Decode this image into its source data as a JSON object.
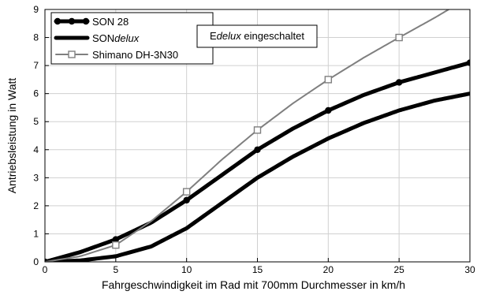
{
  "chart_data": {
    "type": "line",
    "xlabel": "Fahrgeschwindigkeit im Rad mit 700mm Durchmesser in km/h",
    "ylabel": "Antriebsleistung in Watt",
    "xlim": [
      0,
      30
    ],
    "ylim": [
      0,
      9
    ],
    "x_ticks": [
      0,
      5,
      10,
      15,
      20,
      25,
      30
    ],
    "y_ticks": [
      0,
      1,
      2,
      3,
      4,
      5,
      6,
      7,
      8,
      9
    ],
    "grid": true,
    "legend_position": "top-left",
    "annotation": {
      "parts": [
        {
          "text": "E",
          "italic": false
        },
        {
          "text": "delux",
          "italic": true
        },
        {
          "text": " eingeschaltet",
          "italic": false
        }
      ]
    },
    "series": [
      {
        "legend": [
          {
            "text": "SON 28",
            "italic": false
          }
        ],
        "style": "thick-marker",
        "color": "#000000",
        "x": [
          0,
          2.5,
          5,
          7.5,
          10,
          12.5,
          15,
          17.5,
          20,
          22.5,
          25,
          27.5,
          30
        ],
        "y": [
          0,
          0.35,
          0.8,
          1.4,
          2.2,
          3.1,
          4.0,
          4.75,
          5.4,
          5.95,
          6.4,
          6.75,
          7.1
        ],
        "markers_at": [
          0,
          5,
          10,
          15,
          20,
          25,
          30
        ]
      },
      {
        "legend": [
          {
            "text": "SON",
            "italic": false
          },
          {
            "text": "delux",
            "italic": true
          }
        ],
        "style": "thick",
        "color": "#000000",
        "x": [
          0,
          2.5,
          5,
          7.5,
          10,
          12.5,
          15,
          17.5,
          20,
          22.5,
          25,
          27.5,
          30
        ],
        "y": [
          0,
          0.05,
          0.2,
          0.55,
          1.2,
          2.1,
          3.0,
          3.75,
          4.4,
          4.95,
          5.4,
          5.75,
          6.0
        ],
        "markers_at": []
      },
      {
        "legend": [
          {
            "text": "Shimano DH-3N30",
            "italic": false
          }
        ],
        "style": "thin-square",
        "color": "#7f7f7f",
        "x": [
          0,
          2.5,
          5,
          7.5,
          10,
          12.5,
          15,
          17.5,
          20,
          22.5,
          25,
          27.5,
          28.5
        ],
        "y": [
          0,
          0.2,
          0.6,
          1.45,
          2.5,
          3.65,
          4.7,
          5.65,
          6.5,
          7.28,
          8.0,
          8.7,
          9.0
        ],
        "markers_at": [
          5,
          10,
          15,
          20,
          25
        ]
      }
    ]
  }
}
